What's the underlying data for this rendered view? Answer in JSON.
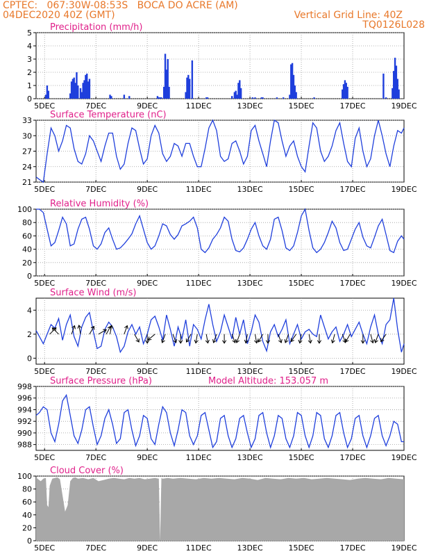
{
  "header": {
    "line1": "CPTEC:   067:30W-08:53S   BOCA DO ACRE (AM)",
    "line2_left": "04DEC2020 40Z (GMT)",
    "line2_right": "Vertical Grid Line: 40Z",
    "line3_right": "TQ0126L028"
  },
  "colors": {
    "accent": "#e8782a",
    "title": "#e0208a",
    "series": "#1f3fdc",
    "cloud": "#a8a8a8",
    "grid": "#9a9a9a"
  },
  "xaxis": {
    "tick_labels": [
      "5DEC",
      "7DEC",
      "9DEC",
      "11DEC",
      "13DEC",
      "15DEC",
      "17DEC",
      "19DEC"
    ],
    "tick_days": [
      5,
      7,
      9,
      11,
      13,
      15,
      17,
      19
    ],
    "start_day": 4.67,
    "end_day": 19.0
  },
  "chart_data": [
    {
      "type": "bar",
      "title": "Precipitation (mm/h)",
      "ylim": [
        0,
        5
      ],
      "yticks": [
        0,
        1,
        2,
        3,
        4,
        5
      ],
      "x": [
        5.05,
        5.1,
        5.15,
        6.0,
        6.05,
        6.1,
        6.15,
        6.2,
        6.25,
        6.3,
        6.4,
        6.45,
        6.5,
        6.55,
        6.6,
        6.65,
        6.7,
        6.75,
        7.55,
        7.6,
        8.1,
        8.3,
        9.4,
        9.45,
        9.5,
        9.55,
        9.65,
        9.7,
        9.75,
        9.8,
        9.85,
        10.5,
        10.55,
        10.6,
        10.65,
        10.75,
        11.3,
        11.35,
        12.3,
        12.4,
        12.45,
        12.5,
        12.55,
        12.6,
        12.65,
        13.1,
        13.2,
        13.45,
        13.5,
        14.05,
        14.3,
        14.55,
        14.6,
        14.65,
        14.7,
        14.75,
        14.8,
        15.5,
        16.6,
        16.65,
        16.7,
        16.75,
        16.8,
        18.2,
        18.3,
        18.55,
        18.6,
        18.65,
        18.7,
        18.75,
        18.8
      ],
      "values": [
        0.3,
        1.0,
        0.6,
        0.4,
        1.3,
        1.5,
        1.6,
        1.2,
        2.0,
        1.0,
        0.8,
        0.5,
        1.2,
        1.4,
        1.8,
        1.9,
        1.3,
        1.5,
        0.3,
        0.2,
        0.3,
        0.2,
        0.2,
        0.1,
        0.1,
        0.1,
        0.9,
        3.4,
        2.2,
        3.0,
        0.9,
        0.5,
        1.6,
        1.8,
        1.5,
        2.9,
        0.1,
        0.1,
        0.2,
        0.5,
        0.6,
        0.3,
        1.2,
        1.4,
        0.8,
        0.1,
        0.1,
        0.1,
        0.1,
        0.1,
        0.1,
        0.3,
        2.6,
        2.7,
        1.8,
        1.0,
        0.5,
        0.1,
        0.7,
        1.1,
        1.4,
        1.2,
        0.9,
        1.9,
        0.1,
        0.8,
        2.1,
        3.1,
        2.5,
        1.5,
        0.7
      ]
    },
    {
      "type": "line",
      "title": "Surface Temperature (nC)",
      "ylim": [
        21,
        33
      ],
      "yticks": [
        21,
        24,
        27,
        30,
        33
      ],
      "x": [
        4.67,
        4.8,
        4.95,
        5.1,
        5.25,
        5.4,
        5.55,
        5.7,
        5.85,
        6.0,
        6.15,
        6.3,
        6.45,
        6.6,
        6.75,
        6.9,
        7.05,
        7.2,
        7.35,
        7.5,
        7.65,
        7.8,
        7.95,
        8.1,
        8.25,
        8.4,
        8.55,
        8.7,
        8.85,
        9.0,
        9.15,
        9.3,
        9.45,
        9.6,
        9.75,
        9.9,
        10.05,
        10.2,
        10.35,
        10.5,
        10.65,
        10.8,
        10.95,
        11.1,
        11.25,
        11.4,
        11.55,
        11.7,
        11.85,
        12.0,
        12.15,
        12.3,
        12.45,
        12.6,
        12.75,
        12.9,
        13.05,
        13.2,
        13.35,
        13.5,
        13.65,
        13.8,
        13.95,
        14.1,
        14.25,
        14.4,
        14.55,
        14.7,
        14.85,
        15.0,
        15.15,
        15.3,
        15.45,
        15.6,
        15.75,
        15.9,
        16.05,
        16.2,
        16.35,
        16.5,
        16.65,
        16.8,
        16.95,
        17.1,
        17.25,
        17.4,
        17.55,
        17.7,
        17.85,
        18.0,
        18.15,
        18.3,
        18.45,
        18.6,
        18.75,
        18.9,
        19.0
      ],
      "values": [
        22.0,
        21.5,
        21.0,
        26.5,
        31.5,
        30.0,
        27.0,
        29.0,
        32.0,
        31.5,
        27.5,
        25.0,
        24.5,
        26.5,
        30.0,
        29.0,
        27.0,
        25.0,
        28.0,
        30.5,
        30.5,
        26.0,
        23.5,
        24.5,
        28.5,
        31.5,
        31.0,
        27.5,
        24.5,
        25.5,
        30.0,
        32.0,
        30.5,
        26.5,
        25.0,
        26.0,
        28.5,
        28.0,
        26.0,
        28.5,
        28.5,
        26.0,
        24.0,
        24.0,
        27.5,
        31.5,
        33.0,
        31.0,
        26.0,
        25.0,
        25.5,
        28.5,
        29.0,
        27.0,
        24.5,
        26.0,
        31.0,
        32.0,
        29.0,
        26.5,
        24.0,
        29.0,
        33.0,
        32.5,
        29.0,
        26.0,
        28.0,
        29.0,
        26.0,
        24.0,
        23.0,
        28.0,
        32.5,
        31.5,
        27.0,
        25.0,
        26.0,
        28.0,
        31.0,
        32.5,
        28.5,
        25.0,
        24.0,
        29.5,
        31.5,
        27.0,
        24.0,
        25.5,
        30.0,
        33.0,
        30.0,
        26.5,
        24.0,
        28.0,
        31.0,
        30.5,
        31.5
      ]
    },
    {
      "type": "line",
      "title": "Relative Humidity (%)",
      "ylim": [
        0,
        100
      ],
      "yticks": [
        0,
        20,
        40,
        60,
        80,
        100
      ],
      "x": [
        4.67,
        4.8,
        4.95,
        5.1,
        5.25,
        5.4,
        5.55,
        5.7,
        5.85,
        6.0,
        6.15,
        6.3,
        6.45,
        6.6,
        6.75,
        6.9,
        7.05,
        7.2,
        7.35,
        7.5,
        7.65,
        7.8,
        7.95,
        8.1,
        8.25,
        8.4,
        8.55,
        8.7,
        8.85,
        9.0,
        9.15,
        9.3,
        9.45,
        9.6,
        9.75,
        9.9,
        10.05,
        10.2,
        10.35,
        10.5,
        10.65,
        10.8,
        10.95,
        11.1,
        11.25,
        11.4,
        11.55,
        11.7,
        11.85,
        12.0,
        12.15,
        12.3,
        12.45,
        12.6,
        12.75,
        12.9,
        13.05,
        13.2,
        13.35,
        13.5,
        13.65,
        13.8,
        13.95,
        14.1,
        14.25,
        14.4,
        14.55,
        14.7,
        14.85,
        15.0,
        15.15,
        15.3,
        15.45,
        15.6,
        15.75,
        15.9,
        16.05,
        16.2,
        16.35,
        16.5,
        16.65,
        16.8,
        16.95,
        17.1,
        17.25,
        17.4,
        17.55,
        17.7,
        17.85,
        18.0,
        18.15,
        18.3,
        18.45,
        18.6,
        18.75,
        18.9,
        19.0
      ],
      "values": [
        100,
        100,
        95,
        70,
        45,
        50,
        68,
        88,
        78,
        45,
        48,
        70,
        85,
        88,
        70,
        45,
        40,
        48,
        65,
        72,
        55,
        40,
        42,
        48,
        55,
        63,
        78,
        90,
        70,
        50,
        40,
        45,
        60,
        78,
        75,
        62,
        55,
        62,
        75,
        78,
        82,
        88,
        72,
        40,
        35,
        42,
        55,
        62,
        72,
        88,
        82,
        55,
        38,
        36,
        42,
        55,
        70,
        80,
        60,
        45,
        40,
        55,
        85,
        88,
        68,
        42,
        38,
        45,
        65,
        90,
        100,
        68,
        42,
        35,
        40,
        50,
        65,
        82,
        72,
        50,
        38,
        40,
        55,
        70,
        80,
        58,
        45,
        42,
        58,
        75,
        85,
        62,
        38,
        35,
        52,
        60,
        55
      ]
    },
    {
      "type": "line",
      "title": "Surface Wind (m/s)",
      "ylim": [
        -0.5,
        5
      ],
      "yticks": [
        0,
        2,
        4
      ],
      "x": [
        4.67,
        4.8,
        4.95,
        5.1,
        5.25,
        5.4,
        5.55,
        5.7,
        5.85,
        6.0,
        6.15,
        6.3,
        6.45,
        6.6,
        6.75,
        6.9,
        7.05,
        7.2,
        7.35,
        7.5,
        7.65,
        7.8,
        7.95,
        8.1,
        8.25,
        8.4,
        8.55,
        8.7,
        8.85,
        9.0,
        9.15,
        9.3,
        9.45,
        9.6,
        9.75,
        9.9,
        10.05,
        10.2,
        10.35,
        10.5,
        10.65,
        10.8,
        10.95,
        11.1,
        11.25,
        11.4,
        11.55,
        11.7,
        11.85,
        12.0,
        12.15,
        12.3,
        12.45,
        12.6,
        12.75,
        12.9,
        13.05,
        13.2,
        13.35,
        13.5,
        13.65,
        13.8,
        13.95,
        14.1,
        14.25,
        14.4,
        14.55,
        14.7,
        14.85,
        15.0,
        15.15,
        15.3,
        15.45,
        15.6,
        15.75,
        15.9,
        16.05,
        16.2,
        16.35,
        16.5,
        16.65,
        16.8,
        16.95,
        17.1,
        17.25,
        17.4,
        17.55,
        17.7,
        17.85,
        18.0,
        18.15,
        18.3,
        18.45,
        18.6,
        18.75,
        18.9,
        19.0
      ],
      "values": [
        2.3,
        1.8,
        1.2,
        2.0,
        2.8,
        2.5,
        3.3,
        1.5,
        2.8,
        3.6,
        1.8,
        1.0,
        2.6,
        3.4,
        3.8,
        2.2,
        0.8,
        1.0,
        2.4,
        3.0,
        2.6,
        1.8,
        0.5,
        1.0,
        2.2,
        2.8,
        2.0,
        2.6,
        1.2,
        2.0,
        3.2,
        3.5,
        2.6,
        1.5,
        3.6,
        2.4,
        1.0,
        2.6,
        1.6,
        3.2,
        1.0,
        2.8,
        2.4,
        1.6,
        3.2,
        4.5,
        2.8,
        1.4,
        2.2,
        3.6,
        2.6,
        1.6,
        3.4,
        2.0,
        3.2,
        1.2,
        2.2,
        3.6,
        3.0,
        1.4,
        0.6,
        2.2,
        2.8,
        1.8,
        2.4,
        3.2,
        1.2,
        2.0,
        2.8,
        1.6,
        2.2,
        2.4,
        2.0,
        1.8,
        3.6,
        2.6,
        1.6,
        2.2,
        2.6,
        1.4,
        2.0,
        2.8,
        1.8,
        2.4,
        3.0,
        2.0,
        1.2,
        2.6,
        3.6,
        2.0,
        1.2,
        2.8,
        3.2,
        5.0,
        2.4,
        0.5,
        1.2
      ],
      "arrows_x": [
        5.2,
        5.55,
        6.05,
        6.4,
        6.75,
        7.1,
        7.4,
        7.55,
        8.1,
        8.5,
        9.0,
        9.3,
        9.7,
        10.0,
        10.3,
        10.7,
        10.95,
        11.3,
        11.7,
        12.0,
        12.3,
        12.6,
        12.9,
        13.2,
        13.5,
        13.7,
        14.1,
        14.5,
        14.8,
        15.0,
        15.3,
        15.7,
        16.3,
        16.6,
        16.9,
        17.4,
        17.7,
        18.0,
        18.3
      ],
      "arrows_dir": [
        45,
        315,
        20,
        350,
        30,
        60,
        30,
        10,
        20,
        150,
        180,
        230,
        200,
        160,
        180,
        210,
        190,
        170,
        200,
        180,
        160,
        200,
        190,
        170,
        210,
        180,
        160,
        200,
        215,
        190,
        170,
        180,
        195,
        160,
        210,
        180,
        165,
        200,
        215
      ]
    },
    {
      "type": "line",
      "title": "Surface Pressure (hPa)",
      "subtitle": "Model Altitude: 153.057 m",
      "ylim": [
        987,
        998
      ],
      "yticks": [
        988,
        990,
        992,
        994,
        996,
        998
      ],
      "x": [
        4.67,
        4.8,
        4.95,
        5.1,
        5.25,
        5.4,
        5.55,
        5.7,
        5.85,
        6.0,
        6.15,
        6.3,
        6.45,
        6.6,
        6.75,
        6.9,
        7.05,
        7.2,
        7.35,
        7.5,
        7.65,
        7.8,
        7.95,
        8.1,
        8.25,
        8.4,
        8.55,
        8.7,
        8.85,
        9.0,
        9.15,
        9.3,
        9.45,
        9.6,
        9.75,
        9.9,
        10.05,
        10.2,
        10.35,
        10.5,
        10.65,
        10.8,
        10.95,
        11.1,
        11.25,
        11.4,
        11.55,
        11.7,
        11.85,
        12.0,
        12.15,
        12.3,
        12.45,
        12.6,
        12.75,
        12.9,
        13.05,
        13.2,
        13.35,
        13.5,
        13.65,
        13.8,
        13.95,
        14.1,
        14.25,
        14.4,
        14.55,
        14.7,
        14.85,
        15.0,
        15.15,
        15.3,
        15.45,
        15.6,
        15.75,
        15.9,
        16.05,
        16.2,
        16.35,
        16.5,
        16.65,
        16.8,
        16.95,
        17.1,
        17.25,
        17.4,
        17.55,
        17.7,
        17.85,
        18.0,
        18.15,
        18.3,
        18.45,
        18.6,
        18.75,
        18.9,
        19.0
      ],
      "values": [
        993.0,
        993.5,
        994.5,
        994.0,
        990.0,
        988.5,
        991.5,
        995.5,
        996.5,
        993.0,
        989.5,
        988.2,
        990.5,
        994.0,
        994.5,
        991.0,
        988.0,
        989.5,
        992.5,
        994.0,
        991.5,
        988.2,
        989.0,
        993.5,
        994.0,
        990.5,
        987.8,
        989.5,
        993.0,
        992.5,
        989.0,
        988.0,
        991.5,
        994.5,
        993.5,
        990.0,
        987.8,
        990.5,
        994.0,
        993.5,
        989.5,
        988.0,
        989.5,
        993.0,
        993.5,
        990.5,
        987.5,
        988.5,
        992.5,
        993.0,
        989.5,
        987.5,
        989.0,
        992.5,
        993.0,
        990.0,
        987.5,
        989.0,
        993.0,
        993.5,
        990.0,
        987.5,
        989.5,
        993.0,
        992.5,
        989.0,
        987.5,
        989.5,
        993.5,
        993.0,
        989.5,
        987.5,
        989.5,
        993.5,
        993.0,
        989.0,
        987.5,
        989.5,
        993.0,
        993.5,
        990.0,
        987.5,
        989.0,
        992.5,
        993.0,
        989.5,
        987.5,
        989.5,
        992.5,
        993.0,
        989.5,
        987.8,
        989.5,
        992.0,
        991.5,
        988.5,
        988.5
      ]
    },
    {
      "type": "area",
      "title": "Cloud Cover (%)",
      "ylim": [
        0,
        100
      ],
      "yticks": [
        0,
        20,
        40,
        60,
        80,
        100
      ],
      "x": [
        4.67,
        4.75,
        4.85,
        4.95,
        5.05,
        5.1,
        5.15,
        5.2,
        5.3,
        5.4,
        5.5,
        5.6,
        5.7,
        5.8,
        5.9,
        6.0,
        6.1,
        6.2,
        6.3,
        6.5,
        6.7,
        6.9,
        7.1,
        7.3,
        7.5,
        7.7,
        7.9,
        8.1,
        8.3,
        8.5,
        8.7,
        8.9,
        9.1,
        9.3,
        9.45,
        9.5,
        9.55,
        9.6,
        9.8,
        10.0,
        10.3,
        10.6,
        10.9,
        11.2,
        11.5,
        11.8,
        12.1,
        12.4,
        12.7,
        13.0,
        13.3,
        13.6,
        13.9,
        14.2,
        14.5,
        14.8,
        15.1,
        15.4,
        15.7,
        16.0,
        16.3,
        16.6,
        16.9,
        17.2,
        17.5,
        17.8,
        18.1,
        18.4,
        18.7,
        19.0
      ],
      "values": [
        98,
        95,
        92,
        96,
        97,
        55,
        52,
        85,
        96,
        97,
        98,
        95,
        70,
        45,
        55,
        92,
        97,
        98,
        96,
        97,
        95,
        97,
        92,
        94,
        96,
        97,
        96,
        95,
        97,
        96,
        97,
        95,
        96,
        97,
        96,
        0,
        97,
        96,
        97,
        96,
        97,
        96,
        95,
        97,
        96,
        97,
        96,
        95,
        97,
        96,
        94,
        97,
        96,
        95,
        97,
        96,
        97,
        95,
        96,
        97,
        96,
        95,
        94,
        96,
        97,
        96,
        95,
        97,
        96,
        95
      ]
    }
  ]
}
